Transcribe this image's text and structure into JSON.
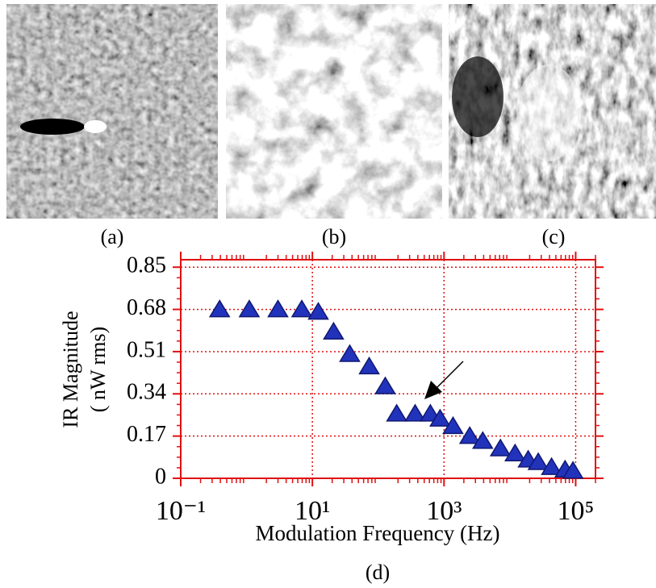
{
  "panel_labels": [
    "(a)",
    "(b)",
    "(c)",
    "(d)"
  ],
  "chart_data": {
    "type": "scatter",
    "x_label": "Modulation Frequency (Hz)",
    "y_label": [
      "IR Magnitude",
      "( nW  rms)"
    ],
    "x_scale": "log",
    "xlim": [
      0.1,
      200000
    ],
    "ylim": [
      0,
      0.88
    ],
    "xticks": [
      {
        "value": 0.1,
        "label": "10⁻¹"
      },
      {
        "value": 10,
        "label": "10¹"
      },
      {
        "value": 1000,
        "label": "10³"
      },
      {
        "value": 100000,
        "label": "10⁵"
      }
    ],
    "yticks": [
      0,
      0.17,
      0.34,
      0.51,
      0.68,
      0.85
    ],
    "grid": true,
    "axis_color": "#e01010",
    "series": [
      {
        "color": "#2233bb",
        "x": [
          0.39,
          1.1,
          3.0,
          6.9,
          12.3,
          21,
          37,
          73,
          128,
          191,
          364,
          620,
          870,
          1370,
          2460,
          3880,
          7200,
          12000,
          19000,
          27000,
          43000,
          69000,
          91000
        ],
        "values": [
          0.68,
          0.68,
          0.68,
          0.68,
          0.67,
          0.59,
          0.5,
          0.45,
          0.37,
          0.26,
          0.26,
          0.26,
          0.24,
          0.21,
          0.17,
          0.15,
          0.12,
          0.1,
          0.075,
          0.065,
          0.045,
          0.035,
          0.03
        ]
      }
    ]
  }
}
